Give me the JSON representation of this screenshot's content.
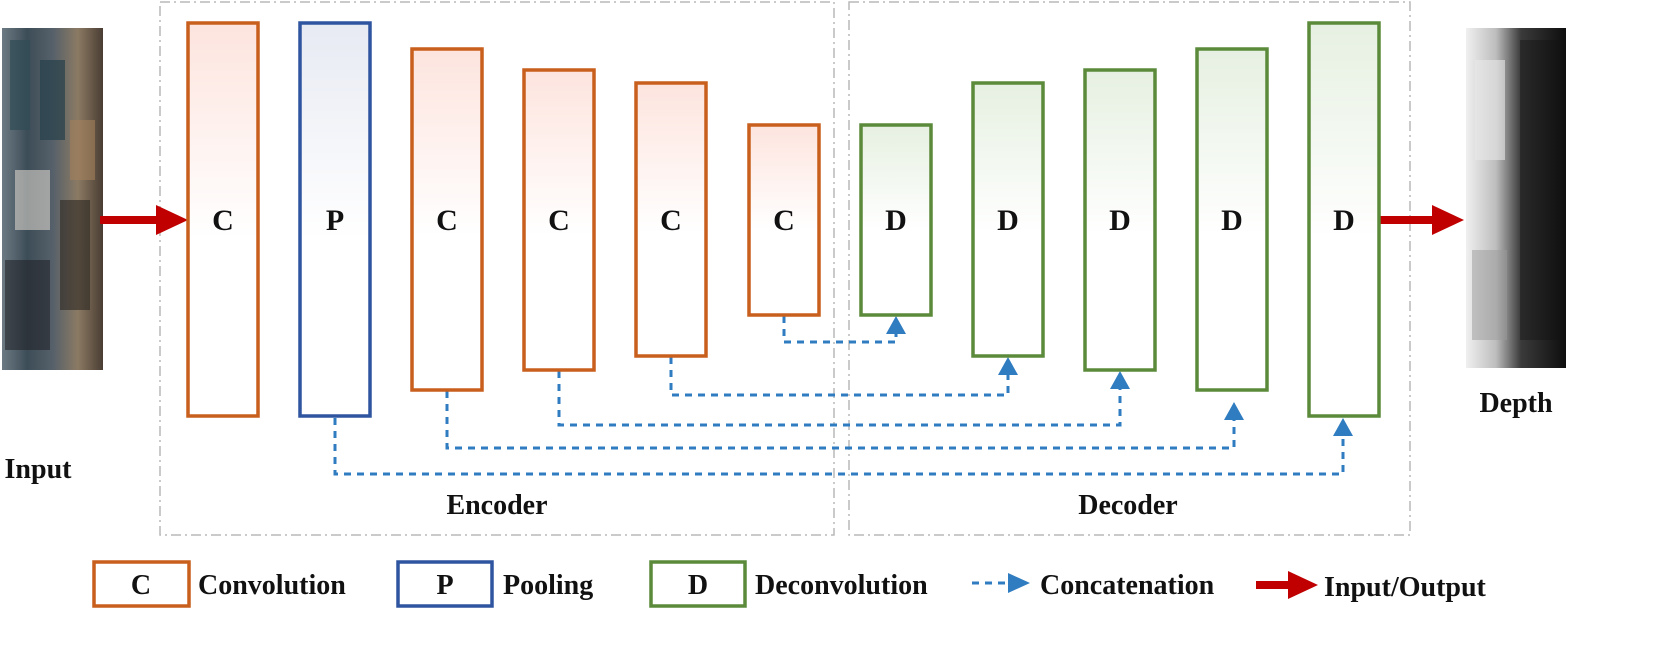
{
  "diagram": {
    "input_label": "Input",
    "output_label": "Depth",
    "encoder_label": "Encoder",
    "decoder_label": "Decoder",
    "encoder_blocks": [
      "C",
      "P",
      "C",
      "C",
      "C",
      "C"
    ],
    "decoder_blocks": [
      "D",
      "D",
      "D",
      "D",
      "D"
    ]
  },
  "legend": {
    "convolution_symbol": "C",
    "convolution_label": "Convolution",
    "pooling_symbol": "P",
    "pooling_label": "Pooling",
    "deconvolution_symbol": "D",
    "deconvolution_label": "Deconvolution",
    "concatenation_label": "Concatenation",
    "io_label": "Input/Output"
  },
  "colors": {
    "convolution": "#c95f1c",
    "pooling": "#2f55a0",
    "deconvolution": "#5b8a3a",
    "concatenation": "#2f7cc0",
    "io_arrow": "#c00000"
  }
}
